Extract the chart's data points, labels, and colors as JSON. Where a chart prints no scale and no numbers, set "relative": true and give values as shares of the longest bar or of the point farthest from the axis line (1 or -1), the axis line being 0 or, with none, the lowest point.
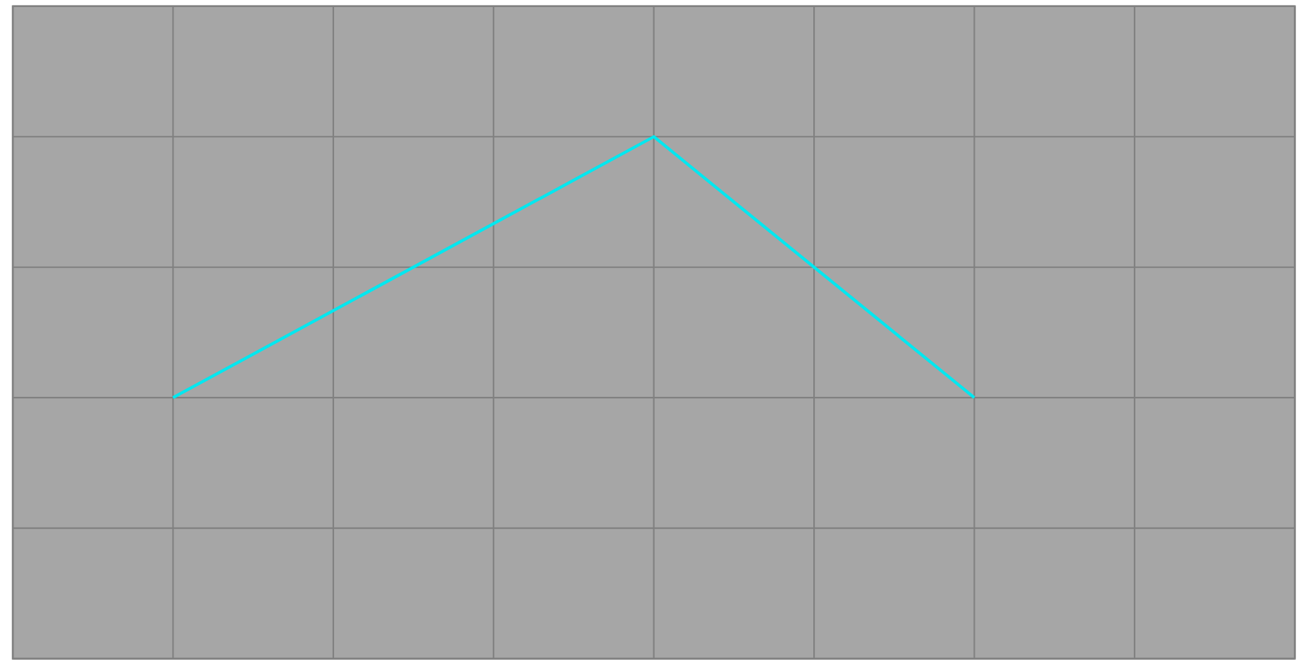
{
  "chart_data": {
    "type": "line",
    "relative": true,
    "categories": [
      null,
      null,
      null,
      null,
      null,
      null,
      null,
      null,
      null
    ],
    "series": [
      {
        "color": "#00e8f0",
        "values": [
          null,
          0,
          null,
          null,
          1,
          null,
          0,
          null,
          null
        ]
      }
    ],
    "grid": true,
    "marker": "none",
    "line_style": "solid"
  }
}
